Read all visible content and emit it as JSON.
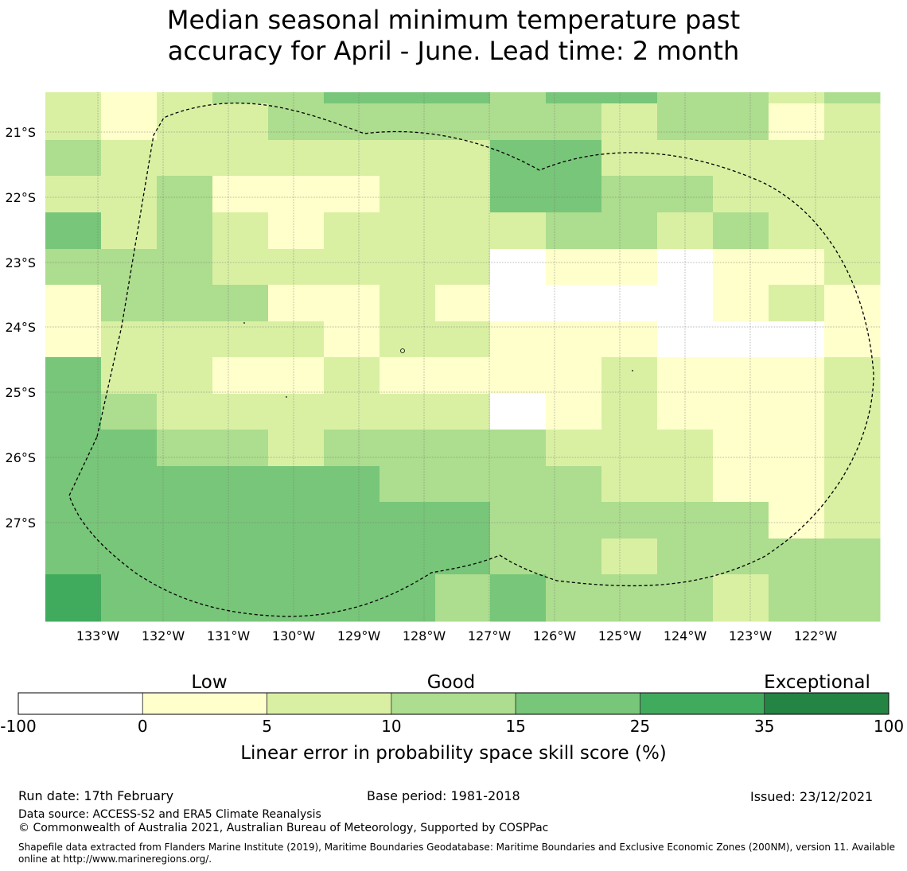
{
  "title_line1": "Median seasonal minimum temperature past",
  "title_line2": "accuracy for April - June. Lead time: 2 month",
  "chart_data": {
    "type": "heatmap",
    "title": "Median seasonal minimum temperature past accuracy for April - June. Lead time: 2 month",
    "longitude_labels": [
      "133°W",
      "132°W",
      "131°W",
      "130°W",
      "129°W",
      "128°W",
      "127°W",
      "126°W",
      "125°W",
      "124°W",
      "123°W",
      "122°W"
    ],
    "latitude_labels": [
      "21°S",
      "22°S",
      "23°S",
      "24°S",
      "25°S",
      "26°S",
      "27°S"
    ],
    "grid_columns": 15,
    "grid_rows": 15,
    "cell_class_legend": "0:<0, 1:0-5, 2:5-10, 3:10-15, 4:15-25, 5:25-35, 6:35-100",
    "cells": [
      [
        2,
        1,
        2,
        3,
        3,
        4,
        4,
        4,
        3,
        4,
        4,
        3,
        3,
        2,
        3
      ],
      [
        2,
        1,
        2,
        2,
        3,
        3,
        3,
        3,
        3,
        3,
        2,
        3,
        3,
        1,
        2
      ],
      [
        3,
        2,
        2,
        2,
        2,
        2,
        2,
        2,
        4,
        4,
        2,
        2,
        2,
        2,
        2
      ],
      [
        2,
        2,
        3,
        1,
        1,
        1,
        2,
        2,
        4,
        4,
        3,
        3,
        2,
        2,
        2
      ],
      [
        4,
        2,
        3,
        2,
        1,
        2,
        2,
        2,
        2,
        3,
        3,
        2,
        3,
        2,
        2
      ],
      [
        3,
        3,
        3,
        2,
        2,
        2,
        2,
        2,
        0,
        1,
        1,
        0,
        1,
        1,
        2
      ],
      [
        1,
        3,
        3,
        3,
        1,
        1,
        2,
        1,
        0,
        0,
        0,
        0,
        1,
        2,
        1
      ],
      [
        1,
        2,
        2,
        2,
        2,
        1,
        2,
        2,
        1,
        1,
        1,
        0,
        0,
        0,
        1
      ],
      [
        4,
        2,
        2,
        1,
        1,
        2,
        1,
        1,
        1,
        1,
        2,
        1,
        1,
        1,
        2
      ],
      [
        4,
        3,
        2,
        2,
        2,
        2,
        2,
        2,
        0,
        1,
        2,
        1,
        1,
        1,
        2
      ],
      [
        4,
        4,
        3,
        3,
        2,
        3,
        3,
        3,
        3,
        2,
        2,
        2,
        1,
        1,
        2
      ],
      [
        4,
        4,
        4,
        4,
        4,
        4,
        3,
        3,
        3,
        3,
        2,
        2,
        1,
        1,
        2
      ],
      [
        4,
        4,
        4,
        4,
        4,
        4,
        4,
        4,
        3,
        3,
        3,
        3,
        3,
        1,
        2
      ],
      [
        4,
        4,
        4,
        4,
        4,
        4,
        4,
        4,
        3,
        3,
        2,
        3,
        3,
        3,
        3
      ],
      [
        5,
        4,
        4,
        4,
        4,
        4,
        4,
        3,
        4,
        3,
        3,
        3,
        2,
        3,
        3
      ]
    ],
    "legend": {
      "category_labels": [
        "Low",
        "Good",
        "Exceptional"
      ],
      "tick_labels": [
        "-100",
        "0",
        "5",
        "10",
        "15",
        "25",
        "35",
        "100"
      ],
      "colors": [
        "#ffffff",
        "#ffffcc",
        "#d9f0a3",
        "#addd8e",
        "#78c679",
        "#41ab5d",
        "#238443"
      ],
      "xlabel": "Linear error in probability space skill score (%)"
    }
  },
  "footer": {
    "run_date": "Run date: 17th February",
    "base_period": "Base period: 1981-2018",
    "issued": "Issued: 23/12/2021",
    "data_source": "Data source: ACCESS-S2 and ERA5 Climate Reanalysis",
    "copyright": "© Commonwealth of Australia 2021, Australian Bureau of Meteorology, Supported by COSPPac",
    "shapefile": "Shapefile data extracted from Flanders Marine Institute (2019), Maritime Boundaries Geodatabase: Maritime Boundaries and Exclusive Economic Zones (200NM), version 11. Available online at http://www.marineregions.org/."
  }
}
